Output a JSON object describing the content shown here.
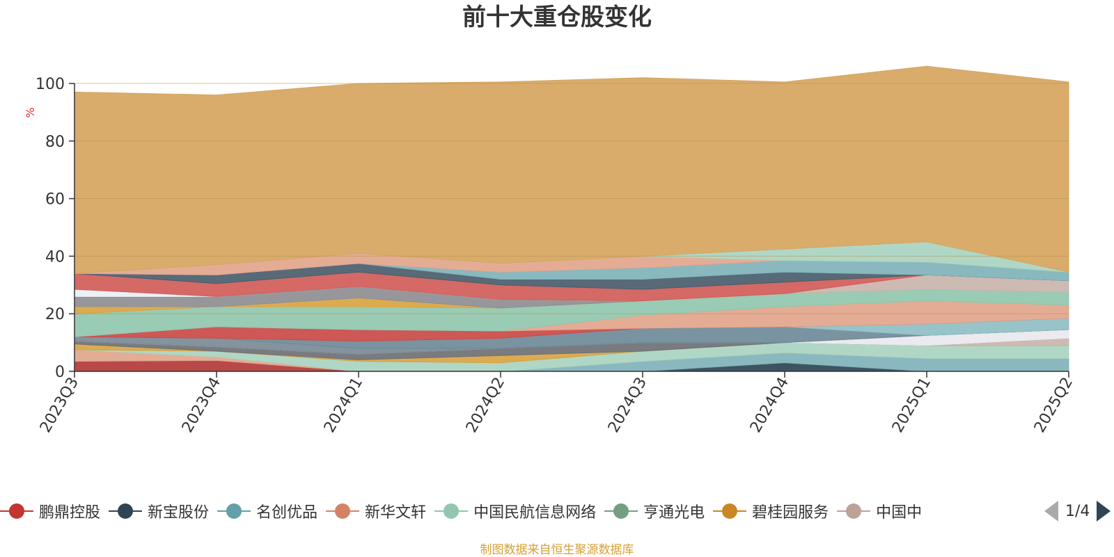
{
  "title": "前十大重仓股变化",
  "source_text": "制图数据来自恒生聚源数据库",
  "legend": {
    "items": [
      {
        "label": "鹏鼎控股",
        "color": "#c23531"
      },
      {
        "label": "新宝股份",
        "color": "#2f4554"
      },
      {
        "label": "名创优品",
        "color": "#61a0a8"
      },
      {
        "label": "新华文轩",
        "color": "#d48265"
      },
      {
        "label": "中国民航信息网络",
        "color": "#91c7ae"
      },
      {
        "label": "亨通光电",
        "color": "#749f83"
      },
      {
        "label": "碧桂园服务",
        "color": "#ca8622"
      },
      {
        "label": "中国中",
        "color": "#bda29a"
      }
    ],
    "page_text": "1/4"
  },
  "chart_data": {
    "type": "area",
    "title": "前十大重仓股变化",
    "ylabel": "%",
    "ylim": [
      0,
      100
    ],
    "yticks": [
      0,
      20,
      40,
      60,
      80,
      100
    ],
    "grid": true,
    "x": [
      "2023Q3",
      "2023Q4",
      "2024Q1",
      "2024Q2",
      "2024Q3",
      "2024Q4",
      "2025Q1",
      "2025Q2"
    ],
    "series": [
      {
        "name": "",
        "color": "#b33a3a",
        "values": [
          3.5,
          3.8,
          0,
          0,
          0,
          0,
          0,
          0
        ]
      },
      {
        "name": "",
        "color": "#2e4454",
        "values": [
          0,
          0,
          0,
          0,
          0,
          3,
          0,
          0
        ]
      },
      {
        "name": "",
        "color": "#7fb3ba",
        "values": [
          0,
          0,
          0,
          0,
          3.5,
          3.5,
          4.5,
          4.5
        ]
      },
      {
        "name": "",
        "color": "#e3a58c",
        "values": [
          4,
          1.2,
          0,
          0,
          0,
          0,
          0,
          0
        ]
      },
      {
        "name": "",
        "color": "#a9d4c1",
        "values": [
          0,
          2,
          3.5,
          3,
          3.5,
          3.5,
          4.5,
          4.5
        ]
      },
      {
        "name": "",
        "color": "#7da58c",
        "values": [
          0,
          0,
          0,
          0,
          0,
          0,
          0,
          0
        ]
      },
      {
        "name": "",
        "color": "#d9a441",
        "values": [
          2,
          0,
          0.5,
          2.5,
          0,
          0,
          0,
          0
        ]
      },
      {
        "name": "",
        "color": "#c9b4ad",
        "values": [
          0,
          0,
          0,
          0,
          0,
          0,
          0,
          2.5
        ]
      },
      {
        "name": "",
        "color": "#6e7074",
        "values": [
          1,
          1.5,
          2,
          2.5,
          3,
          0,
          0,
          0
        ]
      },
      {
        "name": "",
        "color": "#e8e8ee",
        "values": [
          0,
          0,
          0,
          0,
          0,
          0,
          3.5,
          3
        ]
      },
      {
        "name": "",
        "color": "#7a8a96",
        "values": [
          1.5,
          3,
          2,
          0,
          0,
          0,
          0,
          0
        ]
      },
      {
        "name": "",
        "color": "#6e8a98",
        "values": [
          0,
          0,
          2.5,
          3.5,
          5,
          5.5,
          0,
          0
        ]
      },
      {
        "name": "",
        "color": "#8fbec4",
        "values": [
          0,
          0,
          0,
          0,
          0,
          0,
          4,
          4
        ]
      },
      {
        "name": "",
        "color": "#c94a48",
        "values": [
          0,
          4,
          4,
          2.5,
          0,
          0,
          0,
          0
        ]
      },
      {
        "name": "",
        "color": "#e3a58c",
        "values": [
          0,
          0,
          0,
          0,
          4.5,
          7,
          8,
          4.5
        ]
      },
      {
        "name": "",
        "color": "#91c7ae",
        "values": [
          8,
          7,
          8,
          8,
          5,
          4.5,
          4,
          4.5
        ]
      },
      {
        "name": "",
        "color": "#c9b4ad",
        "values": [
          0,
          0,
          0,
          0,
          0,
          0,
          5,
          4
        ]
      },
      {
        "name": "",
        "color": "#d9a441",
        "values": [
          2.5,
          0,
          3,
          0,
          0,
          0,
          0,
          0
        ]
      },
      {
        "name": "",
        "color": "#8e8e93",
        "values": [
          3.5,
          3.5,
          4,
          3,
          0,
          0,
          0,
          0
        ]
      },
      {
        "name": "",
        "color": "#eceff3",
        "values": [
          2.5,
          0,
          0,
          0,
          0,
          0,
          0,
          0
        ]
      },
      {
        "name": "",
        "color": "#d15c59",
        "values": [
          5.5,
          4.5,
          5,
          5,
          4,
          4,
          0,
          0
        ]
      },
      {
        "name": "",
        "color": "#4a5d6b",
        "values": [
          0,
          3,
          3,
          2,
          3.5,
          3.5,
          0,
          0
        ]
      },
      {
        "name": "",
        "color": "#7fb3ba",
        "values": [
          0,
          0,
          0,
          2.5,
          4,
          4,
          4.5,
          3
        ]
      },
      {
        "name": "",
        "color": "#e3a58c",
        "values": [
          0,
          3.5,
          3.5,
          3,
          4,
          0,
          0,
          0
        ]
      },
      {
        "name": "",
        "color": "#a9d4c1",
        "values": [
          0,
          0,
          0,
          0,
          0,
          4,
          7,
          0
        ]
      },
      {
        "name": "",
        "color": "#d6a55f",
        "values": [
          63,
          59,
          59,
          63,
          62,
          58,
          61,
          66
        ]
      }
    ]
  }
}
